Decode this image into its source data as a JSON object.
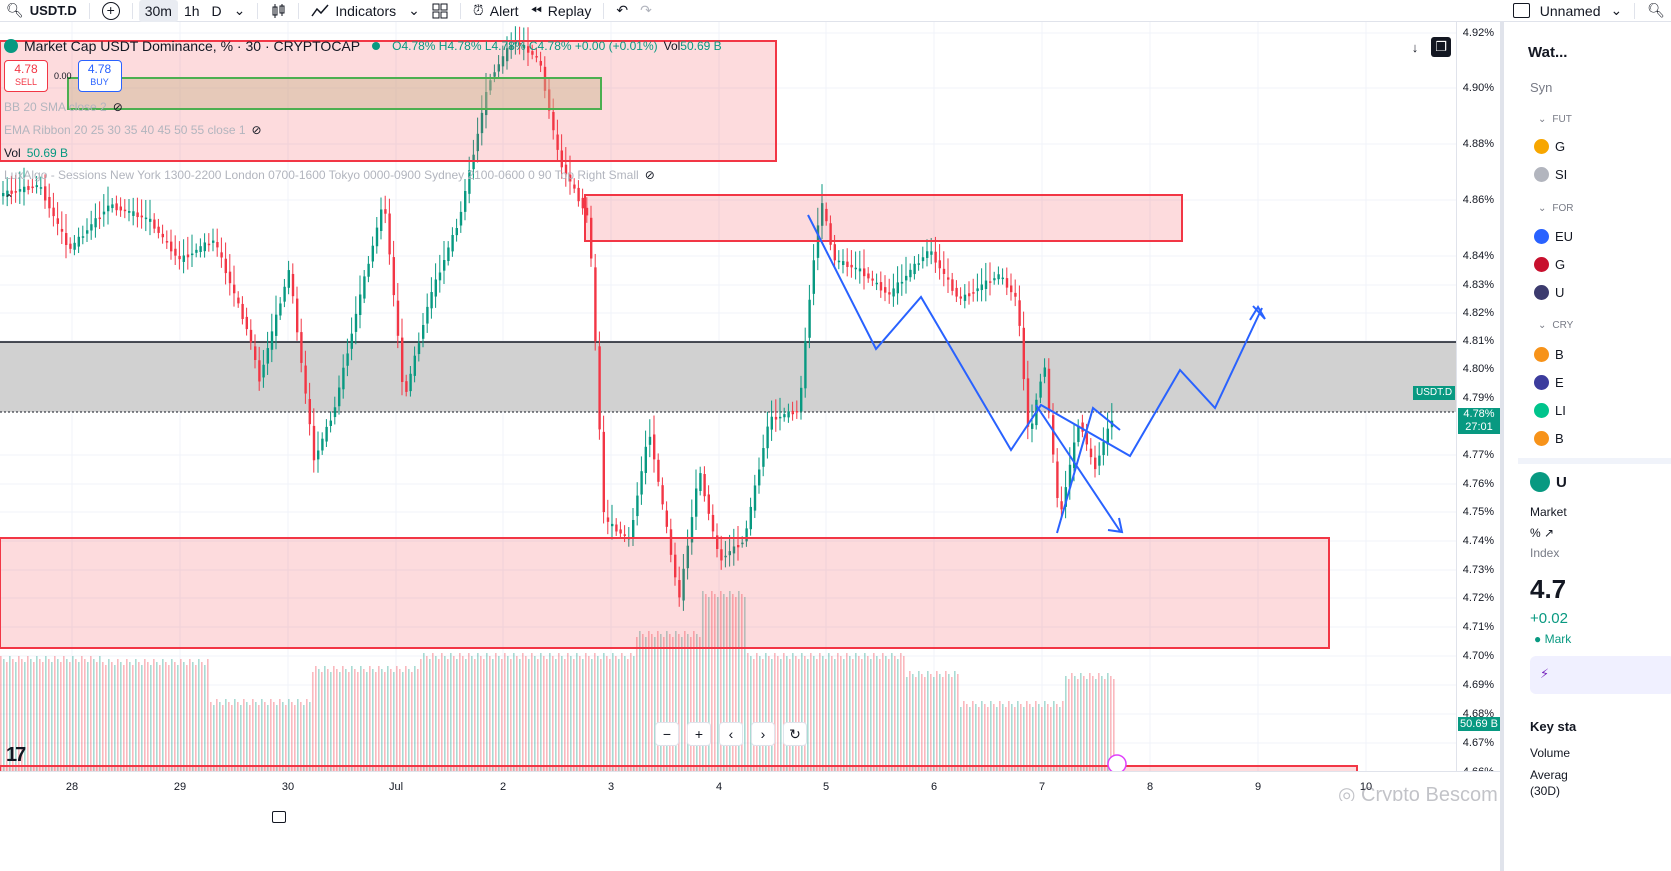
{
  "toolbar": {
    "symbol": "USDT.D",
    "intervals": [
      "30m",
      "1h",
      "D"
    ],
    "active_interval": "30m",
    "indicators_label": "Indicators",
    "alert_label": "Alert",
    "replay_label": "Replay",
    "layout_name": "Unnamed"
  },
  "legend": {
    "title": "Market Cap USDT Dominance, % · 30 · CRYPTOCAP",
    "ohlc": "O4.78% H4.78% L4.78% C4.78% +0.00 (+0.01%)",
    "vol_label": "Vol",
    "vol_value": "50.69 B",
    "sell_price": "4.78",
    "sell_label": "SELL",
    "spread": "0.00",
    "buy_price": "4.78",
    "buy_label": "BUY",
    "indicators": [
      "BB 20 SMA close 2",
      "EMA Ribbon 20 25 30 35 40 45 50 55 close 1",
      "LuxAlgo - Sessions New York 1300-2200 London 0700-1600 Tokyo 0000-0900 Sydney 2100-0600 0 90 Top Right Small"
    ],
    "indicator_vol_label": "Vol",
    "indicator_vol_value": "50.69 B"
  },
  "price_axis": {
    "ticks": [
      "4.92%",
      "4.90%",
      "4.88%",
      "4.86%",
      "4.84%",
      "4.83%",
      "4.82%",
      "4.81%",
      "4.80%",
      "4.79%",
      "4.77%",
      "4.76%",
      "4.75%",
      "4.74%",
      "4.73%",
      "4.72%",
      "4.71%",
      "4.70%",
      "4.69%",
      "4.68%",
      "4.67%",
      "4.66%"
    ],
    "current_symbol_tag": "USDT.D",
    "current_price": "4.78%",
    "countdown": "27:01",
    "volume_label": "50.69 B",
    "colors": {
      "up": "#089981",
      "down": "#f23645",
      "zone_border": "#f23645",
      "projection": "#2962ff"
    }
  },
  "time_axis": {
    "ticks": [
      "28",
      "29",
      "30",
      "Jul",
      "2",
      "3",
      "4",
      "5",
      "6",
      "7",
      "8",
      "9",
      "10"
    ]
  },
  "watermark": "Crypto Bescom",
  "right_panel": {
    "watchlist_title": "Wat...",
    "sync_label": "Syn",
    "sections": [
      {
        "label": "FUT",
        "items": [
          "G",
          "SI"
        ]
      },
      {
        "label": "FOR",
        "items": [
          "EU",
          "G",
          "U"
        ]
      },
      {
        "label": "CRY",
        "items": [
          "B",
          "E",
          "LI",
          "B"
        ]
      }
    ],
    "details_symbol": "U",
    "details_market": "Market",
    "details_index": "Index",
    "details_price": "4.7",
    "details_change": "+0.02",
    "details_status": "Mark",
    "key_stats": "Key sta",
    "volume_label": "Volume",
    "average_label": "Averag",
    "period_label": "(30D)"
  }
}
